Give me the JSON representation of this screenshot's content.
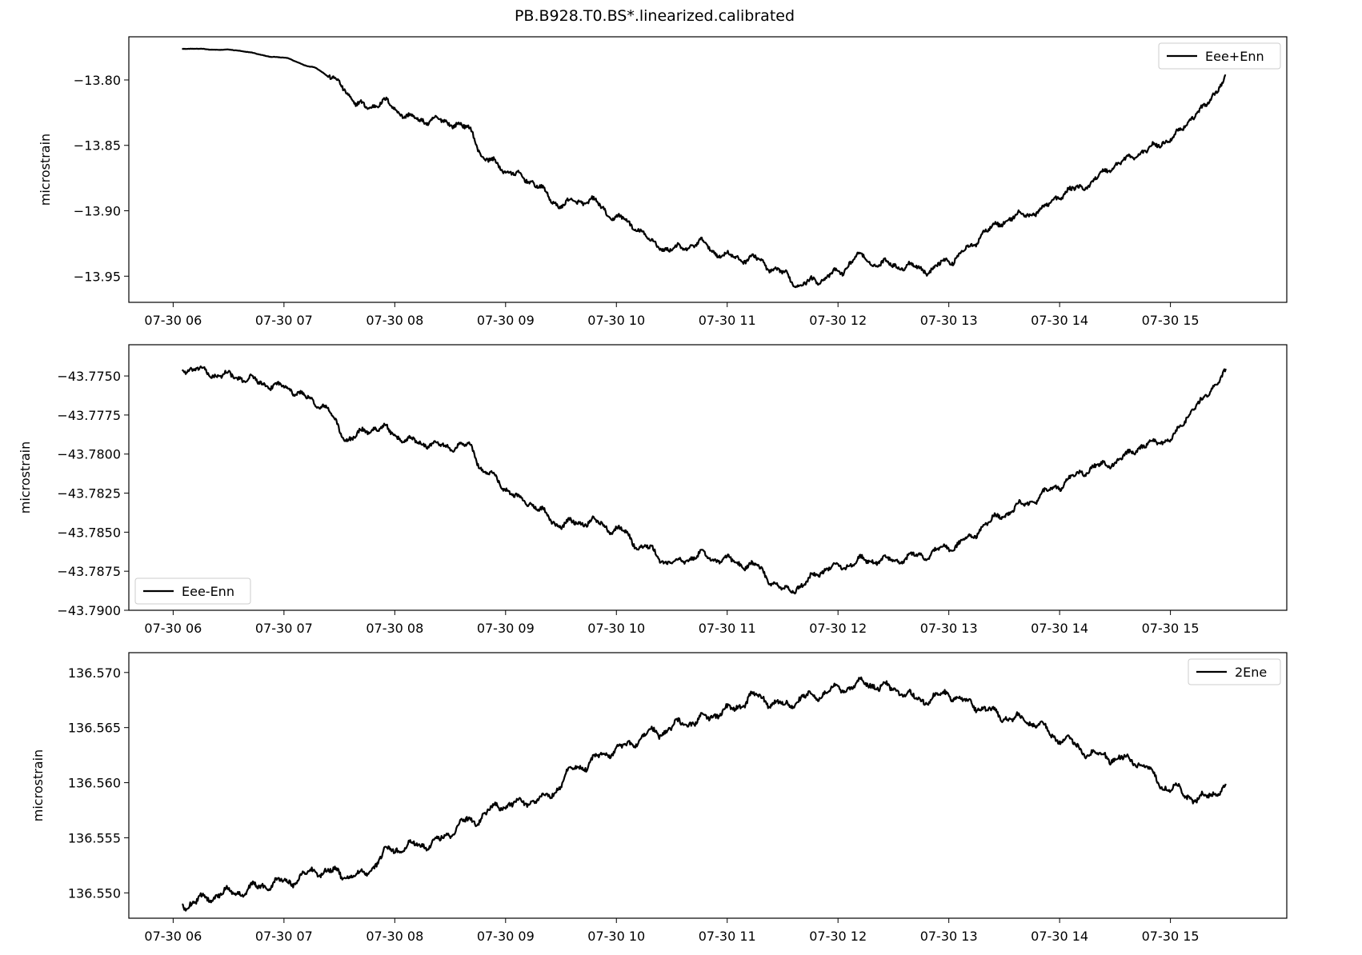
{
  "figure": {
    "title": "PB.B928.T0.BS*.linearized.calibrated"
  },
  "chart_data": [
    {
      "type": "line",
      "title": "",
      "xlabel": "",
      "ylabel": "microstrain",
      "x_range": [
        "07-30 05:36",
        "07-30 16:03"
      ],
      "xlim_hours": [
        5.6,
        16.05
      ],
      "x_ticks": [
        "07-30 06",
        "07-30 07",
        "07-30 08",
        "07-30 09",
        "07-30 10",
        "07-30 11",
        "07-30 12",
        "07-30 13",
        "07-30 14",
        "07-30 15"
      ],
      "ylim": [
        -13.97,
        -13.767
      ],
      "y_ticks": [
        -13.95,
        -13.9,
        -13.85,
        -13.8
      ],
      "y_tick_labels": [
        "−13.95",
        "−13.90",
        "−13.85",
        "−13.80"
      ],
      "y_tick_decimals": 2,
      "legend_position": "top-right",
      "grid": false,
      "series": [
        {
          "name": "Eee+Enn",
          "color": "#000000",
          "x": [
            "07-30 06:05",
            "07-30 06:30",
            "07-30 07:00",
            "07-30 07:15",
            "07-30 07:30",
            "07-30 07:40",
            "07-30 07:55",
            "07-30 08:10",
            "07-30 08:30",
            "07-30 08:40",
            "07-30 08:50",
            "07-30 09:10",
            "07-30 09:30",
            "07-30 09:45",
            "07-30 10:00",
            "07-30 10:10",
            "07-30 10:20",
            "07-30 10:30",
            "07-30 10:45",
            "07-30 11:00",
            "07-30 11:15",
            "07-30 11:30",
            "07-30 11:40",
            "07-30 11:50",
            "07-30 12:00",
            "07-30 12:10",
            "07-30 12:20",
            "07-30 12:35",
            "07-30 12:50",
            "07-30 13:00",
            "07-30 13:10",
            "07-30 13:20",
            "07-30 13:35",
            "07-30 13:50",
            "07-30 14:00",
            "07-30 14:15",
            "07-30 14:30",
            "07-30 14:45",
            "07-30 15:00",
            "07-30 15:15",
            "07-30 15:30"
          ],
          "x_hours": [
            6.08,
            6.5,
            7.0,
            7.25,
            7.5,
            7.67,
            7.92,
            8.17,
            8.5,
            8.67,
            8.83,
            9.17,
            9.5,
            9.75,
            10.0,
            10.17,
            10.33,
            10.5,
            10.75,
            11.0,
            11.25,
            11.5,
            11.67,
            11.83,
            12.0,
            12.17,
            12.33,
            12.58,
            12.83,
            13.0,
            13.17,
            13.33,
            13.58,
            13.83,
            14.0,
            14.25,
            14.5,
            14.75,
            15.0,
            15.25,
            15.5
          ],
          "values": [
            -13.776,
            -13.777,
            -13.783,
            -13.79,
            -13.802,
            -13.82,
            -13.818,
            -13.83,
            -13.832,
            -13.838,
            -13.862,
            -13.875,
            -13.895,
            -13.892,
            -13.905,
            -13.912,
            -13.925,
            -13.93,
            -13.925,
            -13.935,
            -13.937,
            -13.948,
            -13.957,
            -13.952,
            -13.948,
            -13.935,
            -13.94,
            -13.942,
            -13.945,
            -13.938,
            -13.93,
            -13.915,
            -13.905,
            -13.9,
            -13.888,
            -13.88,
            -13.865,
            -13.855,
            -13.845,
            -13.825,
            -13.8
          ]
        }
      ]
    },
    {
      "type": "line",
      "title": "",
      "xlabel": "",
      "ylabel": "microstrain",
      "x_range": [
        "07-30 05:36",
        "07-30 16:03"
      ],
      "xlim_hours": [
        5.6,
        16.05
      ],
      "x_ticks": [
        "07-30 06",
        "07-30 07",
        "07-30 08",
        "07-30 09",
        "07-30 10",
        "07-30 11",
        "07-30 12",
        "07-30 13",
        "07-30 14",
        "07-30 15"
      ],
      "ylim": [
        -43.79,
        -43.773
      ],
      "y_ticks": [
        -43.79,
        -43.7875,
        -43.785,
        -43.7825,
        -43.78,
        -43.7775,
        -43.775
      ],
      "y_tick_labels": [
        "−43.7900",
        "−43.7875",
        "−43.7850",
        "−43.7825",
        "−43.7800",
        "−43.7775",
        "−43.7750"
      ],
      "y_tick_decimals": 4,
      "legend_position": "lower-left",
      "grid": false,
      "series": [
        {
          "name": "Eee-Enn",
          "color": "#000000",
          "x": [
            "07-30 06:05",
            "07-30 06:30",
            "07-30 07:00",
            "07-30 07:20",
            "07-30 07:35",
            "07-30 07:50",
            "07-30 08:10",
            "07-30 08:30",
            "07-30 08:40",
            "07-30 08:50",
            "07-30 09:10",
            "07-30 09:30",
            "07-30 09:45",
            "07-30 10:00",
            "07-30 10:15",
            "07-30 10:30",
            "07-30 10:45",
            "07-30 11:00",
            "07-30 11:15",
            "07-30 11:30",
            "07-30 11:40",
            "07-30 11:50",
            "07-30 12:00",
            "07-30 12:15",
            "07-30 12:30",
            "07-30 12:45",
            "07-30 13:00",
            "07-30 13:10",
            "07-30 13:20",
            "07-30 13:30",
            "07-30 13:45",
            "07-30 14:00",
            "07-30 14:15",
            "07-30 14:30",
            "07-30 14:45",
            "07-30 15:00",
            "07-30 15:15",
            "07-30 15:30"
          ],
          "x_hours": [
            6.08,
            6.5,
            7.0,
            7.33,
            7.58,
            7.83,
            8.17,
            8.5,
            8.67,
            8.83,
            9.17,
            9.5,
            9.75,
            10.0,
            10.25,
            10.5,
            10.75,
            11.0,
            11.25,
            11.5,
            11.67,
            11.83,
            12.0,
            12.25,
            12.5,
            12.75,
            13.0,
            13.17,
            13.33,
            13.5,
            13.75,
            14.0,
            14.25,
            14.5,
            14.75,
            15.0,
            15.25,
            15.5
          ],
          "values": [
            -43.7745,
            -43.775,
            -43.7757,
            -43.7768,
            -43.779,
            -43.7783,
            -43.7792,
            -43.7795,
            -43.7795,
            -43.7813,
            -43.783,
            -43.7845,
            -43.7843,
            -43.7848,
            -43.786,
            -43.787,
            -43.7865,
            -43.7868,
            -43.7872,
            -43.7887,
            -43.7885,
            -43.7875,
            -43.7872,
            -43.7868,
            -43.7868,
            -43.7865,
            -43.786,
            -43.7855,
            -43.7845,
            -43.7838,
            -43.783,
            -43.782,
            -43.781,
            -43.7805,
            -43.7795,
            -43.779,
            -43.7768,
            -43.7748
          ]
        }
      ]
    },
    {
      "type": "line",
      "title": "",
      "xlabel": "",
      "ylabel": "microstrain",
      "x_range": [
        "07-30 05:36",
        "07-30 16:03"
      ],
      "xlim_hours": [
        5.6,
        16.05
      ],
      "x_ticks": [
        "07-30 06",
        "07-30 07",
        "07-30 08",
        "07-30 09",
        "07-30 10",
        "07-30 11",
        "07-30 12",
        "07-30 13",
        "07-30 14",
        "07-30 15"
      ],
      "ylim": [
        136.5477,
        136.5718
      ],
      "y_ticks": [
        136.55,
        136.555,
        136.56,
        136.565,
        136.57
      ],
      "y_tick_labels": [
        "136.550",
        "136.555",
        "136.560",
        "136.565",
        "136.570"
      ],
      "y_tick_decimals": 3,
      "legend_position": "top-right",
      "grid": false,
      "series": [
        {
          "name": "2Ene",
          "color": "#000000",
          "x": [
            "07-30 06:05",
            "07-30 06:30",
            "07-30 07:00",
            "07-30 07:20",
            "07-30 07:40",
            "07-30 08:00",
            "07-30 08:20",
            "07-30 08:40",
            "07-30 09:00",
            "07-30 09:20",
            "07-30 09:40",
            "07-30 10:00",
            "07-30 10:20",
            "07-30 10:40",
            "07-30 11:00",
            "07-30 11:15",
            "07-30 11:30",
            "07-30 11:45",
            "07-30 12:00",
            "07-30 12:15",
            "07-30 12:30",
            "07-30 12:45",
            "07-30 13:00",
            "07-30 13:15",
            "07-30 13:30",
            "07-30 13:45",
            "07-30 14:00",
            "07-30 14:20",
            "07-30 14:40",
            "07-30 15:00",
            "07-30 15:15",
            "07-30 15:30"
          ],
          "x_hours": [
            6.08,
            6.5,
            7.0,
            7.33,
            7.67,
            8.0,
            8.33,
            8.67,
            9.0,
            9.33,
            9.67,
            10.0,
            10.33,
            10.67,
            11.0,
            11.25,
            11.5,
            11.75,
            12.0,
            12.25,
            12.5,
            12.75,
            13.0,
            13.25,
            13.5,
            13.75,
            14.0,
            14.33,
            14.67,
            15.0,
            15.25,
            15.5
          ],
          "values": [
            136.549,
            136.55,
            136.551,
            136.552,
            136.5515,
            136.554,
            136.5545,
            136.5565,
            136.558,
            136.5585,
            136.5615,
            136.563,
            136.5645,
            136.5655,
            136.5665,
            136.5678,
            136.567,
            136.5678,
            136.5685,
            136.569,
            136.5685,
            136.5675,
            136.568,
            136.567,
            136.566,
            136.5655,
            136.564,
            136.5625,
            136.562,
            136.5595,
            136.5585,
            136.5595
          ]
        }
      ]
    }
  ]
}
